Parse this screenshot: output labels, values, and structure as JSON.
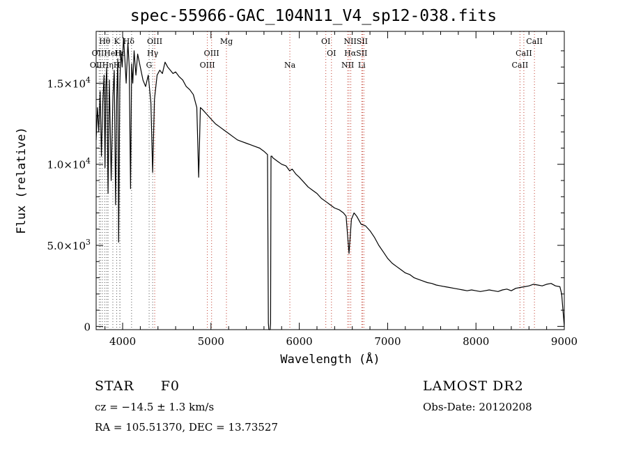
{
  "chart_data": {
    "type": "line",
    "title": "spec-55966-GAC_104N11_V4_sp12-038.fits",
    "xlabel": "Wavelength (Å)",
    "ylabel": "Flux (relative)",
    "xlim": [
      3700,
      9000
    ],
    "ylim": [
      -200,
      18200
    ],
    "x_ticks": [
      4000,
      5000,
      6000,
      7000,
      8000,
      9000
    ],
    "y_ticks": [
      {
        "value": 0,
        "mant": "0",
        "exp": ""
      },
      {
        "value": 5000,
        "mant": "5.0×10",
        "exp": "3"
      },
      {
        "value": 10000,
        "mant": "1.0×10",
        "exp": "4"
      },
      {
        "value": 15000,
        "mant": "1.5×10",
        "exp": "4"
      }
    ],
    "series": [
      {
        "x": [
          3700,
          3715,
          3730,
          3745,
          3760,
          3775,
          3790,
          3800,
          3810,
          3820,
          3835,
          3850,
          3870,
          3890,
          3905,
          3920,
          3933,
          3945,
          3955,
          3968,
          3980,
          3995,
          4010,
          4025,
          4040,
          4060,
          4075,
          4090,
          4102,
          4115,
          4130,
          4150,
          4170,
          4200,
          4230,
          4260,
          4290,
          4320,
          4340,
          4360,
          4390,
          4420,
          4450,
          4480,
          4510,
          4540,
          4570,
          4600,
          4640,
          4680,
          4720,
          4760,
          4800,
          4840,
          4861,
          4880,
          4900,
          4950,
          5000,
          5050,
          5100,
          5150,
          5200,
          5250,
          5300,
          5350,
          5400,
          5450,
          5500,
          5550,
          5600,
          5640,
          5650,
          5655,
          5660,
          5670,
          5675,
          5680,
          5690,
          5700,
          5750,
          5800,
          5850,
          5890,
          5920,
          5960,
          6000,
          6050,
          6100,
          6150,
          6200,
          6250,
          6300,
          6350,
          6400,
          6450,
          6500,
          6530,
          6563,
          6590,
          6620,
          6650,
          6700,
          6750,
          6800,
          6850,
          6900,
          6950,
          7000,
          7050,
          7100,
          7150,
          7200,
          7250,
          7300,
          7350,
          7400,
          7450,
          7500,
          7550,
          7600,
          7650,
          7700,
          7750,
          7800,
          7850,
          7900,
          7950,
          8000,
          8050,
          8100,
          8150,
          8200,
          8250,
          8300,
          8350,
          8400,
          8450,
          8500,
          8550,
          8600,
          8650,
          8700,
          8750,
          8800,
          8850,
          8900,
          8950,
          8970,
          8985,
          9000
        ],
        "y": [
          11500,
          13500,
          12000,
          14500,
          10500,
          13800,
          15500,
          9800,
          14800,
          16000,
          8200,
          15200,
          9000,
          14200,
          15800,
          7500,
          14000,
          16500,
          5200,
          15000,
          17000,
          16000,
          17800,
          16500,
          15000,
          17500,
          16000,
          8500,
          16200,
          15000,
          17000,
          15500,
          16800,
          16000,
          15200,
          14800,
          15500,
          13800,
          9500,
          14000,
          15500,
          15800,
          15600,
          16300,
          16000,
          15800,
          15600,
          15700,
          15400,
          15200,
          14800,
          14600,
          14300,
          13500,
          9200,
          13500,
          13400,
          13100,
          12800,
          12500,
          12300,
          12100,
          11900,
          11700,
          11500,
          11400,
          11300,
          11200,
          11100,
          11000,
          10800,
          10600,
          200,
          -200,
          -200,
          -200,
          200,
          10500,
          10500,
          10400,
          10200,
          10000,
          9900,
          9600,
          9700,
          9400,
          9200,
          8900,
          8600,
          8400,
          8200,
          7900,
          7700,
          7500,
          7300,
          7200,
          7000,
          6800,
          4500,
          6600,
          7000,
          6800,
          6300,
          6200,
          5900,
          5500,
          5000,
          4600,
          4200,
          3900,
          3700,
          3500,
          3300,
          3200,
          3000,
          2900,
          2800,
          2700,
          2650,
          2550,
          2500,
          2450,
          2400,
          2350,
          2300,
          2250,
          2200,
          2250,
          2200,
          2150,
          2200,
          2250,
          2200,
          2150,
          2250,
          2300,
          2200,
          2350,
          2400,
          2450,
          2500,
          2600,
          2550,
          2500,
          2600,
          2650,
          2500,
          2450,
          2000,
          1000,
          0
        ]
      }
    ],
    "lines_dotted_black": [
      3700,
      3735,
      3750,
      3771,
      3798,
      3820,
      3835,
      3889,
      3933,
      3968,
      3970,
      4101,
      4340,
      4300
    ],
    "lines_dotted_red": [
      4363,
      4959,
      5007,
      5175,
      5893,
      6300,
      6364,
      6548,
      6563,
      6583,
      6707,
      6716,
      6731,
      8498,
      8542,
      8662
    ],
    "line_labels": [
      {
        "text": "Hθ",
        "x": 3797,
        "row": 0
      },
      {
        "text": "K",
        "x": 3934,
        "row": 0
      },
      {
        "text": "Hδ",
        "x": 4070,
        "row": 0
      },
      {
        "text": "OIII",
        "x": 4363,
        "row": 0
      },
      {
        "text": "Mg",
        "x": 5175,
        "row": 0
      },
      {
        "text": "OI",
        "x": 6300,
        "row": 0
      },
      {
        "text": "NIISII",
        "x": 6640,
        "row": 0
      },
      {
        "text": "CaII",
        "x": 8662,
        "row": 0
      },
      {
        "text": "OIIHeI",
        "x": 3800,
        "row": 1
      },
      {
        "text": "Hε",
        "x": 3968,
        "row": 1
      },
      {
        "text": "Hγ",
        "x": 4340,
        "row": 1
      },
      {
        "text": "OIII",
        "x": 5007,
        "row": 1
      },
      {
        "text": "OI",
        "x": 6364,
        "row": 1
      },
      {
        "text": "HαSII",
        "x": 6640,
        "row": 1
      },
      {
        "text": "CaII",
        "x": 8542,
        "row": 1
      },
      {
        "text": "OIIHηH",
        "x": 3800,
        "row": 2
      },
      {
        "text": "G",
        "x": 4300,
        "row": 2
      },
      {
        "text": "OIII",
        "x": 4959,
        "row": 2
      },
      {
        "text": "Na",
        "x": 5893,
        "row": 2
      },
      {
        "text": "NII",
        "x": 6548,
        "row": 2
      },
      {
        "text": "Li",
        "x": 6707,
        "row": 2
      },
      {
        "text": "CaII",
        "x": 8498,
        "row": 2
      }
    ]
  },
  "info": {
    "object_class": "STAR",
    "subclass": "F0",
    "survey": "LAMOST DR2",
    "cz": "cz = −14.5 ± 1.3 km/s",
    "obs_date": "Obs-Date: 20120208",
    "radec": "RA = 105.51370, DEC =  13.73527"
  }
}
